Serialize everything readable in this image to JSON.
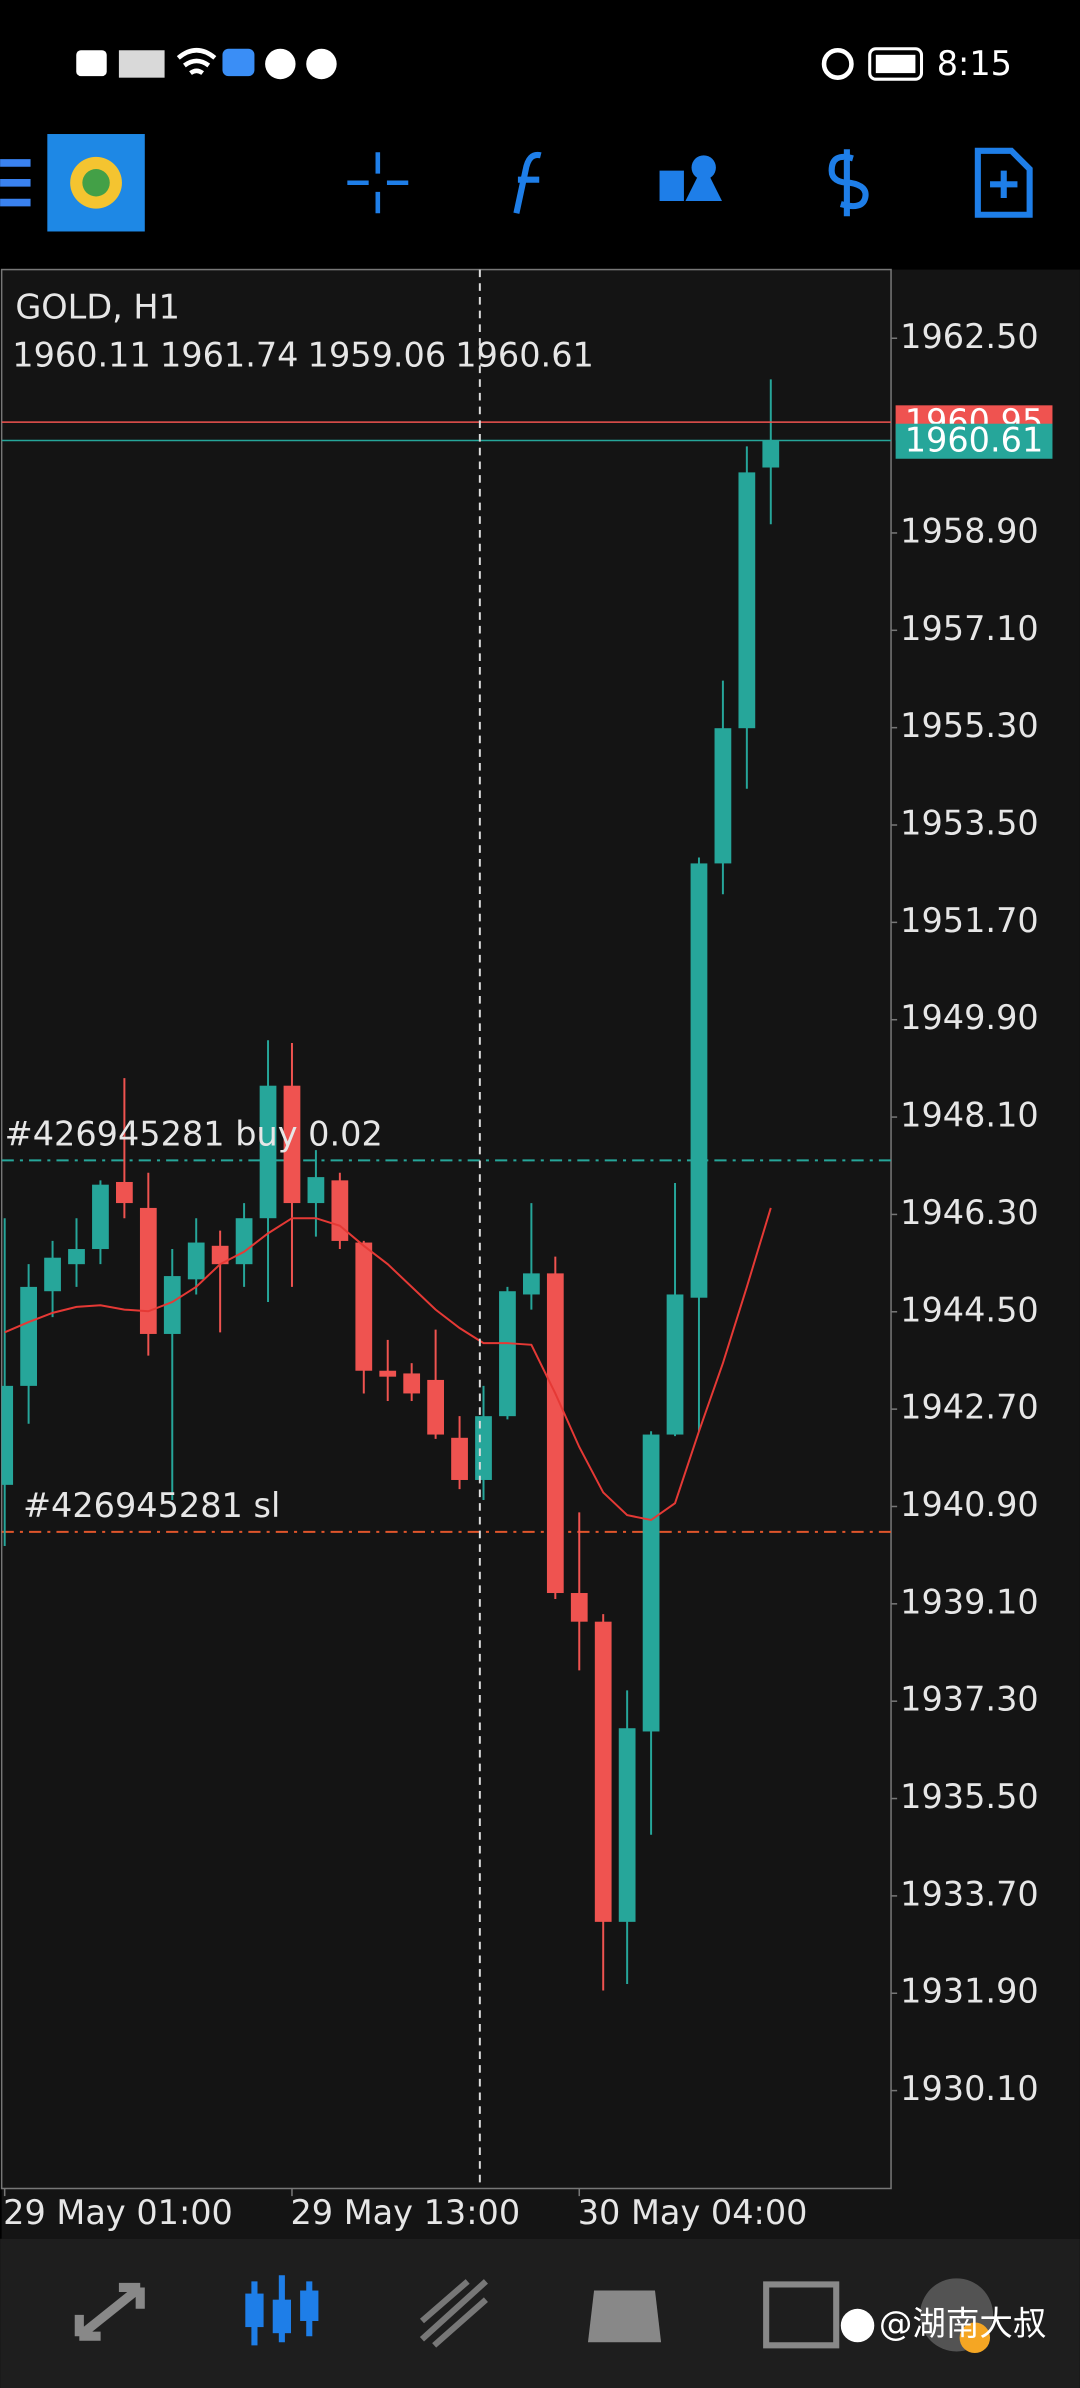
{
  "status_bar": {
    "time": "8:15"
  },
  "watermark": "@湖南大叔",
  "chart_data": {
    "type": "candlestick",
    "title": "GOLD, H1",
    "categories": [
      "29 May 01:00",
      null,
      null,
      null,
      null,
      null,
      null,
      null,
      null,
      null,
      null,
      null,
      "29 May 13:00",
      null,
      null,
      null,
      null,
      null,
      null,
      null,
      null,
      null,
      null,
      null,
      "30 May 04:00",
      null,
      null,
      null,
      null,
      null,
      null,
      null,
      null
    ],
    "open": [
      1941.3,
      1943.13,
      1944.88,
      1945.38,
      1945.66,
      1946.9,
      1946.42,
      1944.09,
      1945.1,
      1945.72,
      1945.38,
      1946.23,
      1948.68,
      1946.51,
      1946.93,
      1945.78,
      1943.41,
      1943.36,
      1943.24,
      1942.17,
      1941.39,
      1942.57,
      1944.82,
      1945.21,
      1939.3,
      1938.77,
      1933.22,
      1936.74,
      1942.23,
      1944.76,
      1952.79,
      1955.29,
      1960.11
    ],
    "high": [
      1946.23,
      1945.38,
      1945.81,
      1946.23,
      1946.93,
      1948.82,
      1947.07,
      1945.66,
      1946.23,
      1946.0,
      1946.51,
      1949.52,
      1949.47,
      1947.49,
      1947.07,
      1945.81,
      1943.98,
      1943.55,
      1944.17,
      1942.57,
      1943.13,
      1944.96,
      1946.51,
      1945.52,
      1940.79,
      1938.91,
      1937.5,
      1942.29,
      1946.88,
      1952.9,
      1956.17,
      1960.5,
      1961.74
    ],
    "low": [
      1940.17,
      1942.43,
      1944.4,
      1944.96,
      1945.38,
      1946.23,
      1943.69,
      1941.02,
      1944.82,
      1944.12,
      1944.96,
      1944.68,
      1944.96,
      1945.89,
      1945.66,
      1942.99,
      1942.85,
      1942.85,
      1942.15,
      1941.22,
      1941.02,
      1942.51,
      1944.54,
      1939.19,
      1937.87,
      1931.95,
      1932.07,
      1934.83,
      1942.2,
      1942.29,
      1952.22,
      1954.17,
      1959.06
    ],
    "close": [
      1943.13,
      1944.96,
      1945.5,
      1945.66,
      1946.85,
      1946.51,
      1944.09,
      1945.16,
      1945.78,
      1945.38,
      1946.23,
      1948.68,
      1946.51,
      1946.99,
      1945.81,
      1943.41,
      1943.3,
      1942.99,
      1942.23,
      1941.39,
      1942.57,
      1944.88,
      1945.21,
      1939.3,
      1938.77,
      1933.22,
      1936.8,
      1942.23,
      1944.82,
      1952.79,
      1955.29,
      1960.02,
      1960.61
    ],
    "up_color": "#26a69a",
    "down_color": "#ef5350",
    "overlay_line": {
      "color": "#e53935",
      "values": [
        1944.12,
        1944.31,
        1944.48,
        1944.59,
        1944.62,
        1944.54,
        1944.51,
        1944.68,
        1944.96,
        1945.38,
        1945.61,
        1945.95,
        1946.23,
        1946.23,
        1946.09,
        1945.72,
        1945.38,
        1944.96,
        1944.54,
        1944.2,
        1943.92,
        1943.92,
        1943.89,
        1942.99,
        1942.0,
        1941.16,
        1940.74,
        1940.65,
        1940.96,
        1942.29,
        1943.55,
        1944.96,
        1946.42
      ]
    },
    "price_lines": [
      {
        "value": 1960.95,
        "color": "#ef5350"
      },
      {
        "value": 1960.61,
        "color": "#26a69a"
      }
    ],
    "levels": [
      {
        "label": "#426945281 buy 0.02",
        "value": 1947.3,
        "color": "#26a69a"
      },
      {
        "label": "#426945281 sl",
        "value": 1940.43,
        "color": "#e0552b"
      }
    ],
    "ylim": [
      1928.29,
      1963.77
    ],
    "yticks": [
      {
        "value": 1962.5,
        "label": "1962.50"
      },
      {
        "value": 1958.9,
        "label": "1958.90"
      },
      {
        "value": 1957.1,
        "label": "1957.10"
      },
      {
        "value": 1955.3,
        "label": "1955.30"
      },
      {
        "value": 1953.5,
        "label": "1953.50"
      },
      {
        "value": 1951.7,
        "label": "1951.70"
      },
      {
        "value": 1949.9,
        "label": "1949.90"
      },
      {
        "value": 1948.1,
        "label": "1948.10"
      },
      {
        "value": 1946.3,
        "label": "1946.30"
      },
      {
        "value": 1944.5,
        "label": "1944.50"
      },
      {
        "value": 1942.7,
        "label": "1942.70"
      },
      {
        "value": 1940.9,
        "label": "1940.90"
      },
      {
        "value": 1939.1,
        "label": "1939.10"
      },
      {
        "value": 1937.3,
        "label": "1937.30"
      },
      {
        "value": 1935.5,
        "label": "1935.50"
      },
      {
        "value": 1933.7,
        "label": "1933.70"
      },
      {
        "value": 1931.9,
        "label": "1931.90"
      },
      {
        "value": 1930.1,
        "label": "1930.10"
      }
    ]
  }
}
